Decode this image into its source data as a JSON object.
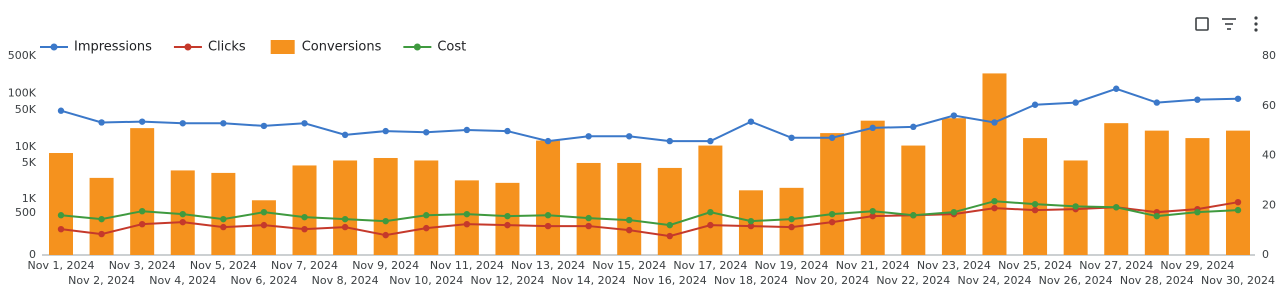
{
  "chart_data": {
    "type": "combo",
    "yscale": "symlog",
    "categories": [
      "Nov 1, 2024",
      "Nov 2, 2024",
      "Nov 3, 2024",
      "Nov 4, 2024",
      "Nov 5, 2024",
      "Nov 6, 2024",
      "Nov 7, 2024",
      "Nov 8, 2024",
      "Nov 9, 2024",
      "Nov 10, 2024",
      "Nov 11, 2024",
      "Nov 12, 2024",
      "Nov 13, 2024",
      "Nov 14, 2024",
      "Nov 15, 2024",
      "Nov 16, 2024",
      "Nov 17, 2024",
      "Nov 18, 2024",
      "Nov 19, 2024",
      "Nov 20, 2024",
      "Nov 21, 2024",
      "Nov 22, 2024",
      "Nov 23, 2024",
      "Nov 24, 2024",
      "Nov 25, 2024",
      "Nov 26, 2024",
      "Nov 27, 2024",
      "Nov 28, 2024",
      "Nov 29, 2024",
      "Nov 30, 2024"
    ],
    "series": [
      {
        "name": "Impressions",
        "kind": "line",
        "color": "#3b78c9",
        "values": [
          48000,
          29000,
          30000,
          28000,
          28000,
          25000,
          28000,
          17000,
          20000,
          19000,
          21000,
          20000,
          13000,
          16000,
          16000,
          13000,
          13000,
          30000,
          15000,
          15000,
          23000,
          24000,
          39000,
          29000,
          62000,
          68000,
          123000,
          68000,
          77000,
          80000
        ]
      },
      {
        "name": "Clicks",
        "kind": "line",
        "color": "#c5392b",
        "values": [
          202,
          145,
          274,
          308,
          230,
          259,
          202,
          230,
          134,
          216,
          274,
          259,
          245,
          245,
          190,
          125,
          259,
          245,
          230,
          308,
          427,
          449,
          474,
          642,
          584,
          612,
          671,
          525,
          612,
          859
        ]
      },
      {
        "name": "Conversions",
        "kind": "bar",
        "axis": "y2",
        "color": "#f5921e",
        "values": [
          41,
          31,
          51,
          34,
          33,
          22,
          36,
          38,
          39,
          38,
          30,
          29,
          46,
          37,
          37,
          35,
          44,
          26,
          27,
          49,
          54,
          44,
          55,
          73,
          47,
          38,
          53,
          50,
          47,
          50
        ]
      },
      {
        "name": "Cost",
        "kind": "line",
        "color": "#3f9a3f",
        "values": [
          449,
          364,
          552,
          474,
          364,
          525,
          405,
          364,
          326,
          449,
          474,
          427,
          449,
          385,
          346,
          259,
          525,
          326,
          364,
          474,
          552,
          449,
          525,
          900,
          781,
          700,
          671,
          427,
          525,
          584
        ]
      }
    ],
    "ylim": [
      0,
      500000
    ],
    "yticks": [
      0,
      500,
      {
        "value": 1000,
        "label": "1K"
      },
      {
        "value": 5000,
        "label": "5K"
      },
      {
        "value": 10000,
        "label": "10K"
      },
      {
        "value": 50000,
        "label": "50K"
      },
      {
        "value": 100000,
        "label": "100K"
      },
      {
        "value": 500000,
        "label": "500K"
      }
    ],
    "y2lim": [
      0,
      80
    ],
    "y2ticks": [
      0,
      20,
      40,
      60,
      80
    ]
  }
}
